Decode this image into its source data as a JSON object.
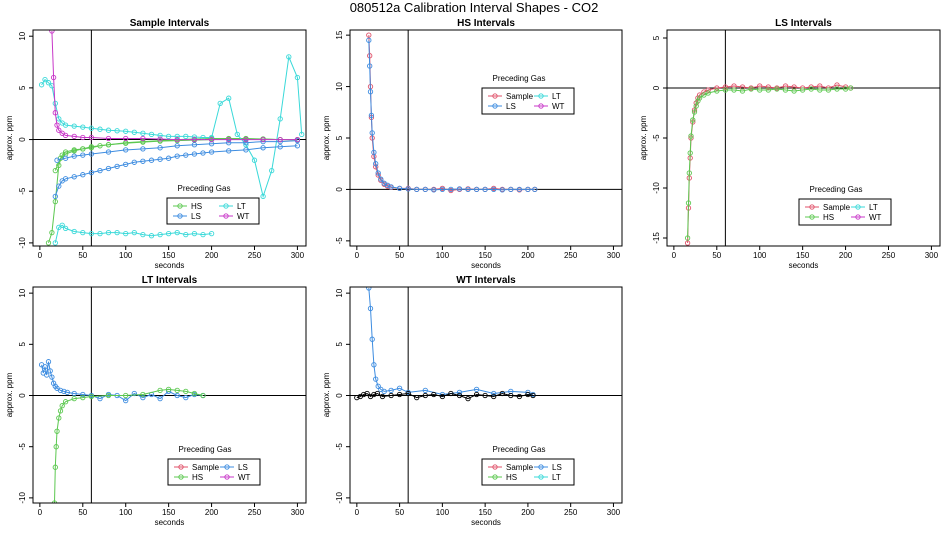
{
  "figure": {
    "title": "080512a   Calibration Interval Shapes - CO2"
  },
  "colors": {
    "Sample": "#e0526a",
    "HS": "#5cc850",
    "LS": "#3d8ce0",
    "LT": "#3ad9d9",
    "WT": "#c837c8",
    "Unknown": "#000000"
  },
  "chart_data": [
    {
      "type": "scatter",
      "title": "Sample Intervals",
      "xlabel": "seconds",
      "ylabel": "approx. ppm",
      "xlim": [
        -8,
        310
      ],
      "ylim": [
        -10.3,
        10.6
      ],
      "xticks": [
        0,
        50,
        100,
        150,
        200,
        250,
        300
      ],
      "yticks": [
        -10,
        -5,
        0,
        5,
        10
      ],
      "vline": 60,
      "hline": 0,
      "legend": {
        "title": "Preceding Gas",
        "entries": [
          "HS",
          "LT",
          "LS",
          "WT"
        ],
        "cols": 2
      },
      "series": [
        {
          "name": "HS",
          "x": [
            10,
            14,
            18,
            22,
            26,
            30,
            40,
            50,
            60,
            70,
            80,
            100,
            120,
            140,
            160,
            180,
            200,
            220,
            240,
            260,
            280,
            300
          ],
          "y": [
            -10,
            -9,
            -6,
            -2.5,
            -1.5,
            -1.2,
            -1.0,
            -0.9,
            -0.8,
            -0.6,
            -0.5,
            -0.3,
            -0.2,
            -0.1,
            0,
            0.05,
            0.1,
            0.1,
            0.1,
            0.05,
            0,
            0
          ]
        },
        {
          "name": "HS",
          "x": [
            18,
            24,
            30,
            40,
            50,
            60,
            80,
            100,
            120,
            140,
            160,
            180,
            200,
            220,
            240,
            260,
            280,
            300
          ],
          "y": [
            -3,
            -1.8,
            -1.4,
            -1.1,
            -0.9,
            -0.7,
            -0.5,
            -0.35,
            -0.25,
            -0.15,
            -0.1,
            -0.05,
            0,
            0.05,
            0.05,
            0.05,
            0,
            0
          ]
        },
        {
          "name": "LT",
          "x": [
            2,
            6,
            10,
            14,
            18,
            22,
            26,
            30,
            40,
            50,
            60,
            70,
            80,
            90,
            100,
            110,
            120,
            130,
            140,
            150,
            160,
            170,
            180,
            190,
            200,
            210,
            220,
            230,
            240,
            250,
            260,
            270,
            280,
            290,
            300,
            305
          ],
          "y": [
            5.3,
            5.8,
            5.5,
            5.2,
            3.5,
            2.0,
            1.6,
            1.4,
            1.3,
            1.2,
            1.1,
            1.0,
            0.9,
            0.85,
            0.8,
            0.7,
            0.6,
            0.5,
            0.4,
            0.3,
            0.3,
            0.3,
            0.25,
            0.2,
            0.2,
            3.5,
            4.0,
            0.5,
            -0.5,
            -2,
            -5.5,
            -3,
            2,
            8,
            6,
            0.5
          ]
        },
        {
          "name": "LT",
          "x": [
            18,
            22,
            26,
            30,
            40,
            50,
            60,
            70,
            80,
            90,
            100,
            110,
            120,
            130,
            140,
            150,
            160,
            170,
            180,
            190,
            200
          ],
          "y": [
            -10,
            -8.5,
            -8.3,
            -8.6,
            -8.9,
            -9.0,
            -9.1,
            -9.1,
            -9.0,
            -9.0,
            -9.1,
            -9.0,
            -9.2,
            -9.3,
            -9.2,
            -9.1,
            -9.0,
            -9.2,
            -9.1,
            -9.2,
            -9.1
          ]
        },
        {
          "name": "LS",
          "x": [
            18,
            22,
            26,
            30,
            40,
            50,
            60,
            70,
            80,
            90,
            100,
            110,
            120,
            130,
            140,
            150,
            160,
            170,
            180,
            190,
            200,
            220,
            240,
            260,
            280,
            300
          ],
          "y": [
            -5.5,
            -4.5,
            -4.0,
            -3.8,
            -3.6,
            -3.4,
            -3.2,
            -3.0,
            -2.8,
            -2.6,
            -2.4,
            -2.2,
            -2.1,
            -2.0,
            -1.9,
            -1.8,
            -1.6,
            -1.5,
            -1.4,
            -1.3,
            -1.2,
            -1.1,
            -1.0,
            -0.8,
            -0.7,
            -0.6
          ]
        },
        {
          "name": "LS",
          "x": [
            20,
            30,
            40,
            50,
            60,
            80,
            100,
            120,
            140,
            160,
            180,
            200,
            220,
            240,
            260,
            280,
            300
          ],
          "y": [
            -2.0,
            -1.8,
            -1.6,
            -1.5,
            -1.4,
            -1.2,
            -1.0,
            -0.9,
            -0.8,
            -0.6,
            -0.5,
            -0.4,
            -0.3,
            -0.3,
            -0.2,
            -0.2,
            -0.1
          ]
        },
        {
          "name": "WT",
          "x": [
            14,
            16,
            18,
            20,
            22,
            26,
            30,
            40,
            50,
            60,
            80,
            100,
            120,
            140,
            160,
            180,
            200,
            220,
            240,
            260,
            280,
            300
          ],
          "y": [
            10.5,
            6.0,
            2.6,
            1.4,
            0.9,
            0.6,
            0.4,
            0.3,
            0.2,
            0.2,
            0.1,
            0.1,
            0.1,
            0.05,
            0,
            0,
            0,
            0,
            0,
            0,
            0,
            0
          ]
        }
      ]
    },
    {
      "type": "scatter",
      "title": "HS Intervals",
      "xlabel": "seconds",
      "ylabel": "approx. ppm",
      "xlim": [
        -8,
        310
      ],
      "ylim": [
        -5.5,
        15.5
      ],
      "xticks": [
        0,
        50,
        100,
        150,
        200,
        250,
        300
      ],
      "yticks": [
        -5,
        0,
        5,
        10,
        15
      ],
      "vline": 60,
      "hline": 0,
      "legend": {
        "title": "Preceding Gas",
        "entries": [
          "Sample",
          "LT",
          "LS",
          "WT"
        ],
        "cols": 2
      },
      "series": [
        {
          "name": "Sample",
          "x": [
            14,
            15,
            16,
            17,
            18,
            20,
            22,
            25,
            28,
            32,
            36,
            40,
            50,
            60,
            70,
            80,
            90,
            100,
            110,
            120,
            130,
            140,
            150,
            160,
            170,
            180,
            190,
            200,
            208
          ],
          "y": [
            15,
            13,
            10,
            7,
            5,
            3.2,
            2.2,
            1.4,
            0.9,
            0.5,
            0.3,
            0.2,
            0.1,
            0.1,
            0,
            0,
            0,
            0.1,
            -0.1,
            0,
            0.05,
            0,
            0,
            0.1,
            0,
            0,
            -0.05,
            0,
            0
          ]
        },
        {
          "name": "LS",
          "x": [
            14,
            15,
            16,
            17,
            18,
            20,
            22,
            25,
            28,
            32,
            36,
            40,
            50,
            60,
            70,
            80,
            90,
            100,
            110,
            120,
            130,
            140,
            150,
            160,
            170,
            180,
            190,
            200,
            208
          ],
          "y": [
            14.5,
            12,
            9.5,
            7.2,
            5.5,
            3.6,
            2.5,
            1.6,
            1.0,
            0.6,
            0.4,
            0.25,
            0.1,
            0.05,
            0,
            0,
            -0.05,
            0,
            0,
            0.05,
            0,
            0,
            0,
            0,
            -0.05,
            0,
            0,
            0,
            0
          ]
        }
      ]
    },
    {
      "type": "scatter",
      "title": "LS Intervals",
      "xlabel": "seconds",
      "ylabel": "approx. ppm",
      "xlim": [
        -8,
        310
      ],
      "ylim": [
        -15.8,
        5.8
      ],
      "xticks": [
        0,
        50,
        100,
        150,
        200,
        250,
        300
      ],
      "yticks": [
        -15,
        -10,
        -5,
        0,
        5
      ],
      "vline": 60,
      "hline": 0,
      "legend": {
        "title": "Preceding Gas",
        "entries": [
          "Sample",
          "LT",
          "HS",
          "WT"
        ],
        "cols": 2
      },
      "series": [
        {
          "name": "Sample",
          "x": [
            16,
            17,
            18,
            19,
            20,
            22,
            24,
            26,
            28,
            30,
            35,
            40,
            50,
            60,
            70,
            80,
            90,
            100,
            110,
            120,
            130,
            140,
            150,
            160,
            170,
            180,
            190,
            200,
            206
          ],
          "y": [
            -15.5,
            -12,
            -9,
            -7,
            -5,
            -3.4,
            -2.2,
            -1.5,
            -1.0,
            -0.7,
            -0.4,
            -0.2,
            0,
            0.1,
            0.2,
            0.1,
            0,
            0.2,
            0.1,
            0,
            0.2,
            0.1,
            0,
            0.1,
            0.2,
            0,
            0.3,
            0.1,
            0
          ]
        },
        {
          "name": "HS",
          "x": [
            16,
            17,
            18,
            19,
            20,
            22,
            24,
            26,
            28,
            30,
            35,
            40,
            50,
            60,
            70,
            80,
            90,
            100,
            110,
            120,
            130,
            140,
            150,
            160,
            170,
            180,
            190,
            200,
            206
          ],
          "y": [
            -15.0,
            -11.5,
            -8.5,
            -6.5,
            -4.8,
            -3.2,
            -2.4,
            -1.8,
            -1.3,
            -1.0,
            -0.7,
            -0.5,
            -0.3,
            -0.2,
            -0.2,
            -0.3,
            -0.1,
            -0.2,
            -0.2,
            -0.1,
            -0.2,
            -0.3,
            -0.2,
            -0.1,
            -0.2,
            -0.2,
            -0.1,
            -0.1,
            0
          ]
        }
      ]
    },
    {
      "type": "scatter",
      "title": "LT Intervals",
      "xlabel": "seconds",
      "ylabel": "approx. ppm",
      "xlim": [
        -8,
        310
      ],
      "ylim": [
        -10.5,
        10.6
      ],
      "xticks": [
        0,
        50,
        100,
        150,
        200,
        250,
        300
      ],
      "yticks": [
        -10,
        -5,
        0,
        5,
        10
      ],
      "vline": 60,
      "hline": 0,
      "legend": {
        "title": "Preceding Gas",
        "entries": [
          "Sample",
          "LS",
          "HS",
          "WT"
        ],
        "cols": 2
      },
      "series": [
        {
          "name": "LS",
          "x": [
            2,
            4,
            6,
            8,
            10,
            12,
            14,
            16,
            18,
            20,
            24,
            28,
            32,
            40,
            50,
            60,
            70,
            80,
            90,
            100,
            110,
            120,
            130,
            140,
            150,
            160,
            170,
            180,
            190
          ],
          "y": [
            3.0,
            2.2,
            2.8,
            2.0,
            3.3,
            2.4,
            1.8,
            1.2,
            0.9,
            0.7,
            0.5,
            0.4,
            0.3,
            0.2,
            0.1,
            0,
            -0.3,
            0.1,
            0,
            -0.5,
            0.2,
            -0.2,
            0.1,
            -0.3,
            0.4,
            0,
            -0.2,
            0.1,
            0
          ]
        },
        {
          "name": "HS",
          "x": [
            17,
            18,
            19,
            20,
            22,
            24,
            26,
            30,
            40,
            50,
            60,
            80,
            100,
            120,
            140,
            150,
            160,
            170,
            180,
            190
          ],
          "y": [
            -10.5,
            -7.0,
            -5.0,
            -3.5,
            -2.2,
            -1.5,
            -1.0,
            -0.6,
            -0.3,
            -0.2,
            -0.1,
            0,
            0,
            0.1,
            0.5,
            0.6,
            0.5,
            0.4,
            0.2,
            0
          ]
        }
      ]
    },
    {
      "type": "scatter",
      "title": "WT Intervals",
      "xlabel": "seconds",
      "ylabel": "approx. ppm",
      "xlim": [
        -8,
        310
      ],
      "ylim": [
        -10.5,
        10.6
      ],
      "xticks": [
        0,
        50,
        100,
        150,
        200,
        250,
        300
      ],
      "yticks": [
        -10,
        -5,
        0,
        5,
        10
      ],
      "vline": 60,
      "hline": 0,
      "legend": {
        "title": "Preceding Gas",
        "entries": [
          "Sample",
          "LS",
          "HS",
          "LT"
        ],
        "cols": 2
      },
      "series": [
        {
          "name": "LS",
          "x": [
            14,
            16,
            18,
            20,
            22,
            25,
            28,
            32,
            40,
            50,
            60,
            80,
            100,
            120,
            140,
            160,
            180,
            200,
            206
          ],
          "y": [
            10.5,
            8.5,
            5.5,
            3.0,
            1.6,
            0.9,
            0.6,
            0.4,
            0.5,
            0.7,
            0.3,
            0.5,
            0.1,
            0.3,
            0.6,
            0.2,
            0.4,
            0.3,
            0.1
          ]
        },
        {
          "name": "Unknown",
          "x": [
            0,
            4,
            8,
            12,
            16,
            20,
            24,
            30,
            40,
            50,
            60,
            70,
            80,
            90,
            100,
            110,
            120,
            130,
            140,
            150,
            160,
            170,
            180,
            190,
            200,
            206
          ],
          "y": [
            -0.2,
            -0.1,
            0.1,
            0.2,
            -0.1,
            0.1,
            0.2,
            -0.1,
            0,
            0.1,
            0.2,
            -0.2,
            0,
            0.1,
            -0.1,
            0.2,
            0,
            -0.3,
            0.1,
            0,
            -0.1,
            0.2,
            0,
            -0.1,
            0.1,
            0
          ]
        }
      ]
    }
  ]
}
